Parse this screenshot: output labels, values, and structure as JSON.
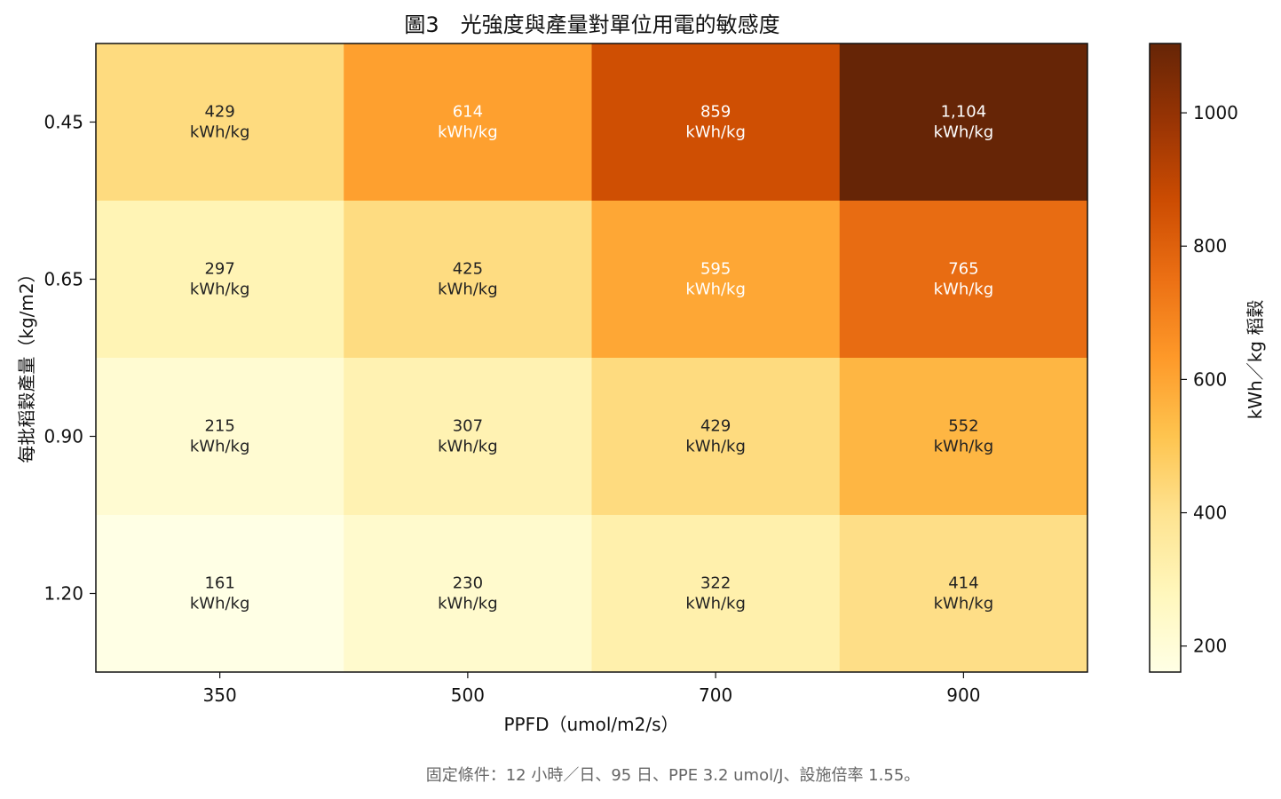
{
  "chart_data": {
    "type": "heatmap",
    "title": "圖3　光強度與產量對單位用電的敏感度",
    "xlabel": "PPFD（umol/m2/s）",
    "ylabel": "每批稻穀產量（kg/m2）",
    "x_categories": [
      "350",
      "500",
      "700",
      "900"
    ],
    "y_categories": [
      "0.45",
      "0.65",
      "0.90",
      "1.20"
    ],
    "values": [
      [
        429,
        614,
        859,
        1104
      ],
      [
        297,
        425,
        595,
        765
      ],
      [
        215,
        307,
        429,
        552
      ],
      [
        161,
        230,
        322,
        414
      ]
    ],
    "cell_labels": [
      [
        "429\nkWh/kg",
        "614\nkWh/kg",
        "859\nkWh/kg",
        "1,104\nkWh/kg"
      ],
      [
        "297\nkWh/kg",
        "425\nkWh/kg",
        "595\nkWh/kg",
        "765\nkWh/kg"
      ],
      [
        "215\nkWh/kg",
        "307\nkWh/kg",
        "429\nkWh/kg",
        "552\nkWh/kg"
      ],
      [
        "161\nkWh/kg",
        "230\nkWh/kg",
        "322\nkWh/kg",
        "414\nkWh/kg"
      ]
    ],
    "colorbar": {
      "label": "kWh／kg 稻穀",
      "ticks": [
        200,
        400,
        600,
        800,
        1000
      ],
      "range": [
        161,
        1104
      ],
      "colormap": "YlOrBr",
      "colors": [
        "#ffffe5",
        "#fff7bc",
        "#fee391",
        "#fec44f",
        "#fe9929",
        "#ec7014",
        "#cc4c02",
        "#993404",
        "#662506"
      ]
    },
    "grid": false
  },
  "footnote": "固定條件：12 小時／日、95 日、PPE 3.2 umol/J、設施倍率 1.55。"
}
